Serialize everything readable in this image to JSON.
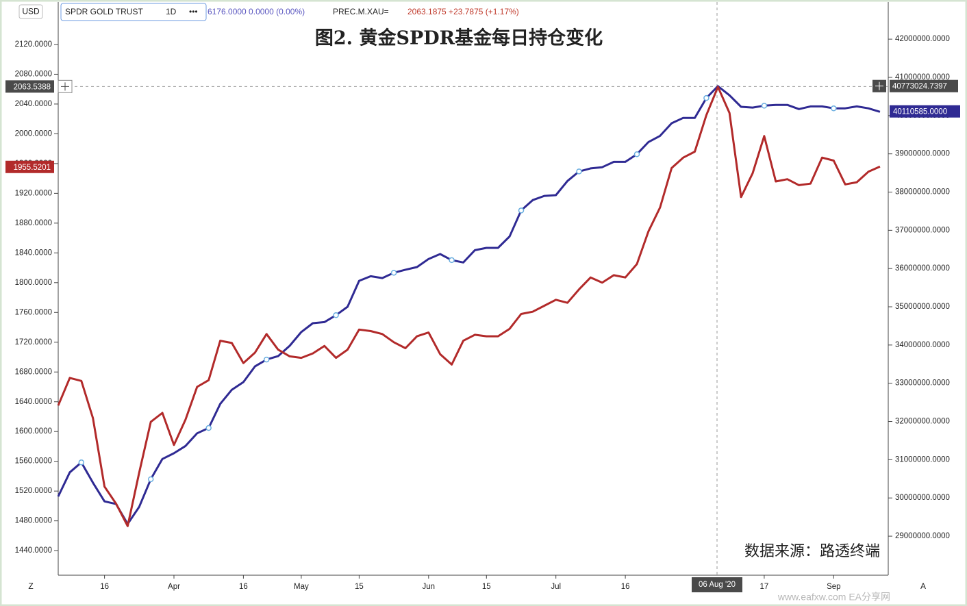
{
  "header": {
    "currency": "USD",
    "interval": "1D",
    "menu": "•••",
    "symbol_quote": "6176.0000 0.0000 (0.00%)",
    "compare_quote": "2063.1875 +23.7875 (+1.17%)",
    "left_button": "Z",
    "right_button": "A",
    "watermark": "www.eafxw.com  EA分享网"
  },
  "chart_data": {
    "type": "line",
    "title": "图2. 黄金SPDR基金每日持仓变化",
    "annotation": "数据来源：路透终端",
    "categories": [
      null,
      null,
      null,
      null,
      "16",
      null,
      null,
      null,
      null,
      null,
      "Apr",
      null,
      null,
      null,
      null,
      null,
      "16",
      null,
      null,
      null,
      null,
      "May",
      null,
      null,
      null,
      null,
      "15",
      null,
      null,
      null,
      null,
      null,
      "Jun",
      null,
      null,
      null,
      null,
      "15",
      null,
      null,
      null,
      null,
      null,
      "Jul",
      null,
      null,
      null,
      null,
      null,
      "16",
      null,
      null,
      null,
      null,
      null,
      null,
      null,
      null,
      null,
      null,
      null,
      "17",
      null,
      null,
      null,
      null,
      null,
      "Sep",
      null,
      null,
      null,
      null
    ],
    "series": [
      {
        "name": "SPDR GOLD TRUST",
        "color": "#2f2a93",
        "axis": "y2",
        "values": [
          30040000,
          30670000,
          30930000,
          30400000,
          29910000,
          29840000,
          29320000,
          29770000,
          30490000,
          31020000,
          31170000,
          31360000,
          31690000,
          31830000,
          32460000,
          32830000,
          33030000,
          33440000,
          33620000,
          33710000,
          33980000,
          34340000,
          34570000,
          34600000,
          34780000,
          35000000,
          35680000,
          35800000,
          35750000,
          35890000,
          35970000,
          36040000,
          36250000,
          36380000,
          36220000,
          36160000,
          36480000,
          36540000,
          36540000,
          36840000,
          37520000,
          37790000,
          37900000,
          37920000,
          38290000,
          38540000,
          38620000,
          38650000,
          38790000,
          38790000,
          38990000,
          39310000,
          39470000,
          39800000,
          39940000,
          39940000,
          40460000,
          40770000,
          40530000,
          40230000,
          40210000,
          40260000,
          40280000,
          40280000,
          40170000,
          40240000,
          40240000,
          40190000,
          40190000,
          40240000,
          40190000,
          40100000
        ],
        "last_value": {
          "value": 40110585,
          "label": "40110585.0000"
        }
      },
      {
        "name": "PREC.M.XAU=",
        "color": "#b22a2a",
        "axis": "y",
        "values": [
          1635,
          1672,
          1668,
          1618,
          1526,
          1503,
          1473,
          1545,
          1613,
          1625,
          1582,
          1616,
          1660,
          1669,
          1722,
          1719,
          1692,
          1706,
          1731,
          1710,
          1701,
          1699,
          1705,
          1715,
          1699,
          1710,
          1737,
          1735,
          1731,
          1720,
          1712,
          1728,
          1733,
          1704,
          1690,
          1722,
          1730,
          1728,
          1728,
          1738,
          1758,
          1761,
          1769,
          1777,
          1773,
          1791,
          1807,
          1800,
          1810,
          1807,
          1825,
          1869,
          1901,
          1954,
          1968,
          1976,
          2025,
          2063,
          2028,
          1915,
          1947,
          1997,
          1936,
          1939,
          1931,
          1933,
          1968,
          1964,
          1932,
          1935,
          1949,
          1956
        ],
        "last_value": 1955.5201
      }
    ],
    "ylim": [
      1407,
      2177
    ],
    "yticks": [
      {
        "value": 1440,
        "label": "1440.0000"
      },
      {
        "value": 1480,
        "label": "1480.0000"
      },
      {
        "value": 1520,
        "label": "1520.0000"
      },
      {
        "value": 1560,
        "label": "1560.0000"
      },
      {
        "value": 1600,
        "label": "1600.0000"
      },
      {
        "value": 1640,
        "label": "1640.0000"
      },
      {
        "value": 1680,
        "label": "1680.0000"
      },
      {
        "value": 1720,
        "label": "1720.0000"
      },
      {
        "value": 1760,
        "label": "1760.0000"
      },
      {
        "value": 1800,
        "label": "1800.0000"
      },
      {
        "value": 1840,
        "label": "1840.0000"
      },
      {
        "value": 1880,
        "label": "1880.0000"
      },
      {
        "value": 1920,
        "label": "1920.0000"
      },
      {
        "value": 1960,
        "label": "1960.0000"
      },
      {
        "value": 2000,
        "label": "2000.0000"
      },
      {
        "value": 2040,
        "label": "2040.0000"
      },
      {
        "value": 2080,
        "label": "2080.0000"
      },
      {
        "value": 2120,
        "label": "2120.0000"
      }
    ],
    "y2lim": [
      27980000,
      42970000
    ],
    "y2ticks": [
      {
        "value": 29000000,
        "label": "29000000.0000"
      },
      {
        "value": 30000000,
        "label": "30000000.0000"
      },
      {
        "value": 31000000,
        "label": "31000000.0000"
      },
      {
        "value": 32000000,
        "label": "32000000.0000"
      },
      {
        "value": 33000000,
        "label": "33000000.0000"
      },
      {
        "value": 34000000,
        "label": "34000000.0000"
      },
      {
        "value": 35000000,
        "label": "35000000.0000"
      },
      {
        "value": 36000000,
        "label": "36000000.0000"
      },
      {
        "value": 37000000,
        "label": "37000000.0000"
      },
      {
        "value": 38000000,
        "label": "38000000.0000"
      },
      {
        "value": 39000000,
        "label": "39000000.0000"
      },
      {
        "value": 40000000,
        "label": "40000000.0000"
      },
      {
        "value": 41000000,
        "label": "41000000.0000"
      },
      {
        "value": 42000000,
        "label": "42000000.0000"
      }
    ],
    "grid": false,
    "crosshair": {
      "x_label": "06 Aug '20",
      "y": 2063.5388,
      "y2": {
        "value": 40773024.7397,
        "label": "40773024.7397"
      }
    }
  }
}
